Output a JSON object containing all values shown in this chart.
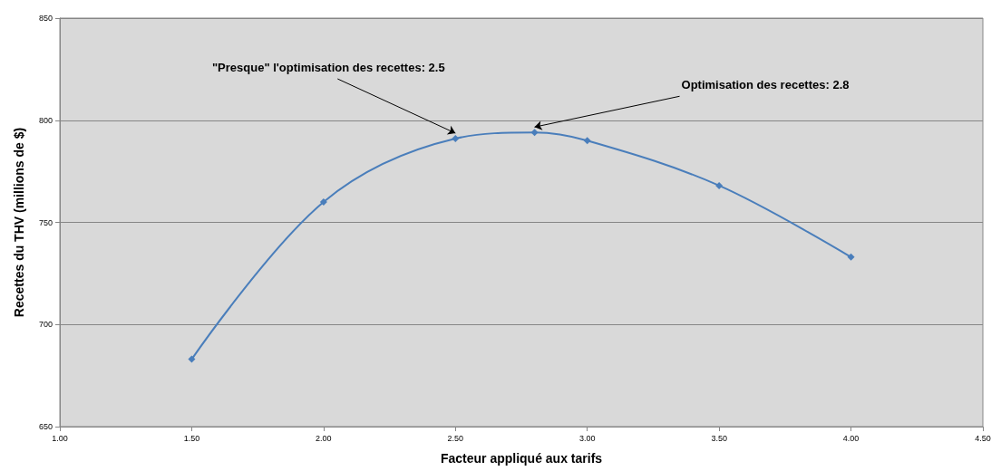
{
  "chart_data": {
    "type": "line",
    "xlabel": "Facteur appliqué aux tarifs",
    "ylabel": "Recettes du THV (millions de $)",
    "x": [
      1.5,
      2.0,
      2.5,
      2.8,
      3.0,
      3.5,
      4.0
    ],
    "series": [
      {
        "color": "#4a7ebb",
        "values": [
          683,
          760,
          791,
          794,
          790,
          768,
          733
        ]
      }
    ],
    "xlim": [
      1.0,
      4.5
    ],
    "xticks": [
      {
        "value": 1.0,
        "label": "1.00"
      },
      {
        "value": 1.5,
        "label": "1.50"
      },
      {
        "value": 2.0,
        "label": "2.00"
      },
      {
        "value": 2.5,
        "label": "2.50"
      },
      {
        "value": 3.0,
        "label": "3.00"
      },
      {
        "value": 3.5,
        "label": "3.50"
      },
      {
        "value": 4.0,
        "label": "4.00"
      },
      {
        "value": 4.5,
        "label": "4.50"
      }
    ],
    "ylim": [
      650,
      850
    ],
    "yticks": [
      650,
      700,
      750,
      800,
      850
    ],
    "grid": "y",
    "marker": "diamond",
    "line_style": "solid",
    "annotations": [
      {
        "text": "\"Presque\" l'optimisation des recettes: 2.5",
        "x": 2.5,
        "y": 791
      },
      {
        "text": "Optimisation des recettes: 2.8",
        "x": 2.8,
        "y": 794
      }
    ]
  }
}
